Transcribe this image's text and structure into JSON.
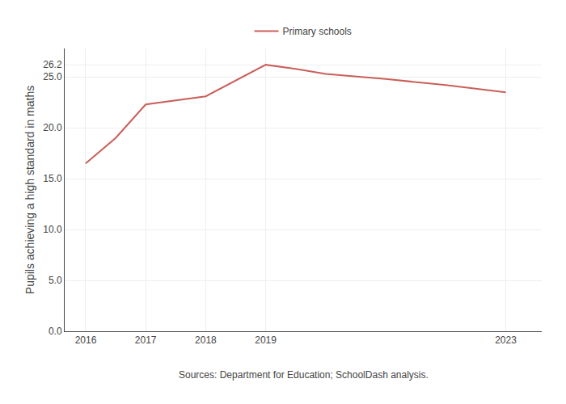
{
  "chart_data": {
    "type": "line",
    "ylabel": "Pupils achieving a high standard in maths",
    "x": [
      2016,
      2016.5,
      2017,
      2018,
      2019,
      2019.5,
      2020,
      2021,
      2022,
      2023
    ],
    "series": [
      {
        "name": "Primary schools",
        "color": "#c95f5a",
        "values": [
          16.5,
          19.0,
          22.3,
          23.1,
          26.2,
          25.8,
          25.3,
          24.8,
          24.2,
          23.5
        ]
      }
    ],
    "xlim": [
      2015.65,
      2023.6
    ],
    "xticks": [
      2016,
      2017,
      2018,
      2019,
      2023
    ],
    "ylim": [
      0.0,
      27.8
    ],
    "yticks": [
      {
        "value": 0,
        "label": "0.0"
      },
      {
        "value": 5,
        "label": "5.0"
      },
      {
        "value": 10,
        "label": "10.0"
      },
      {
        "value": 15,
        "label": "15.0"
      },
      {
        "value": 20,
        "label": "20.0"
      },
      {
        "value": 25,
        "label": "25.0"
      },
      26.2
    ],
    "grid": true,
    "legend": "top",
    "annotations": [
      "Sources: Department for Education; SchoolDash analysis."
    ]
  }
}
